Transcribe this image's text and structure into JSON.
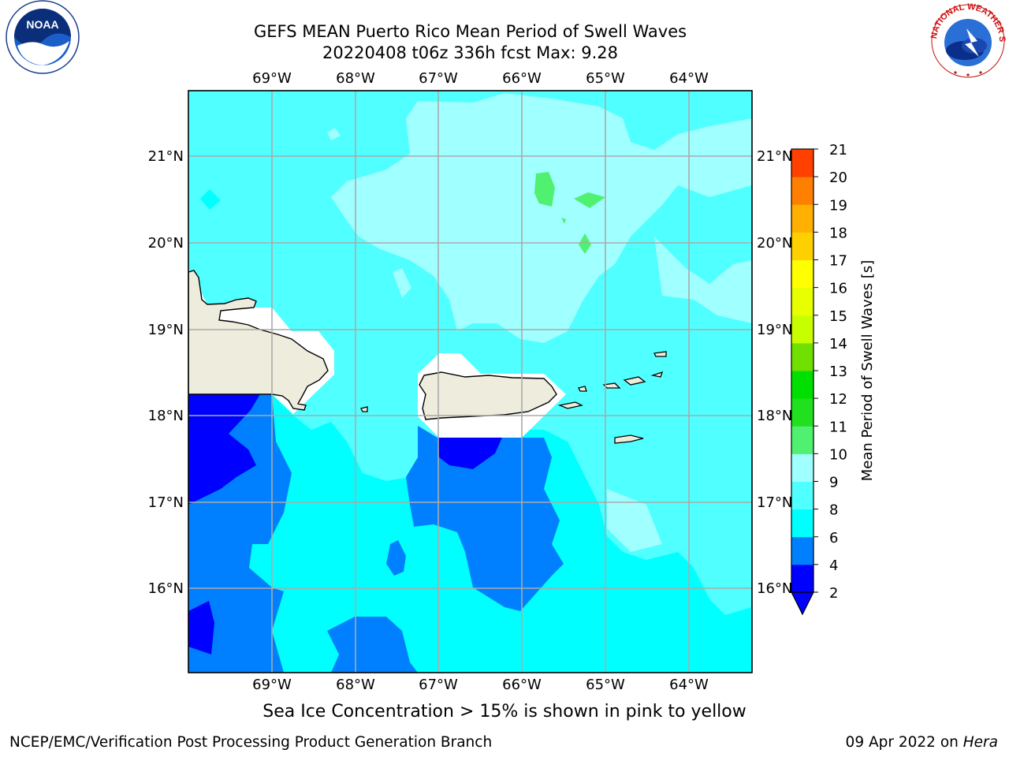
{
  "title": {
    "line1": "GEFS MEAN Puerto Rico Mean Period of Swell Waves",
    "line2": "20220408 t06z 336h fcst   Max: 9.28"
  },
  "map": {
    "lon_labels": [
      "69°W",
      "68°W",
      "67°W",
      "66°W",
      "65°W",
      "64°W"
    ],
    "lat_labels": [
      "21°N",
      "20°N",
      "19°N",
      "18°N",
      "17°N",
      "16°N"
    ],
    "land_color": "#eeecdc",
    "coastline_color": "#000000",
    "grid_color": "#aaaaaa"
  },
  "colorbar": {
    "label": "Mean Period of Swell Waves [s]",
    "ticks": [
      "2",
      "4",
      "6",
      "8",
      "9",
      "10",
      "11",
      "12",
      "13",
      "14",
      "15",
      "16",
      "17",
      "18",
      "19",
      "20",
      "21"
    ],
    "colors": [
      "#0000ff",
      "#0080ff",
      "#00ffff",
      "#50ffff",
      "#a0ffff",
      "#50f070",
      "#20e020",
      "#00e000",
      "#70e000",
      "#c8ff00",
      "#e8ff00",
      "#ffff00",
      "#ffd000",
      "#ffb000",
      "#ff8000",
      "#ff4000",
      "#ff2000",
      "#ff0000"
    ],
    "under_color": "#0000ff"
  },
  "note": "Sea Ice Concentration > 15% is shown in pink to yellow",
  "footer": {
    "left": "NCEP/EMC/Verification Post Processing Product Generation Branch",
    "right_date": "09 Apr 2022 on ",
    "right_machine": "Hera"
  },
  "logos": {
    "noaa_text": "NOAA",
    "nws_text": "NATIONAL WEATHER SERVICE"
  }
}
